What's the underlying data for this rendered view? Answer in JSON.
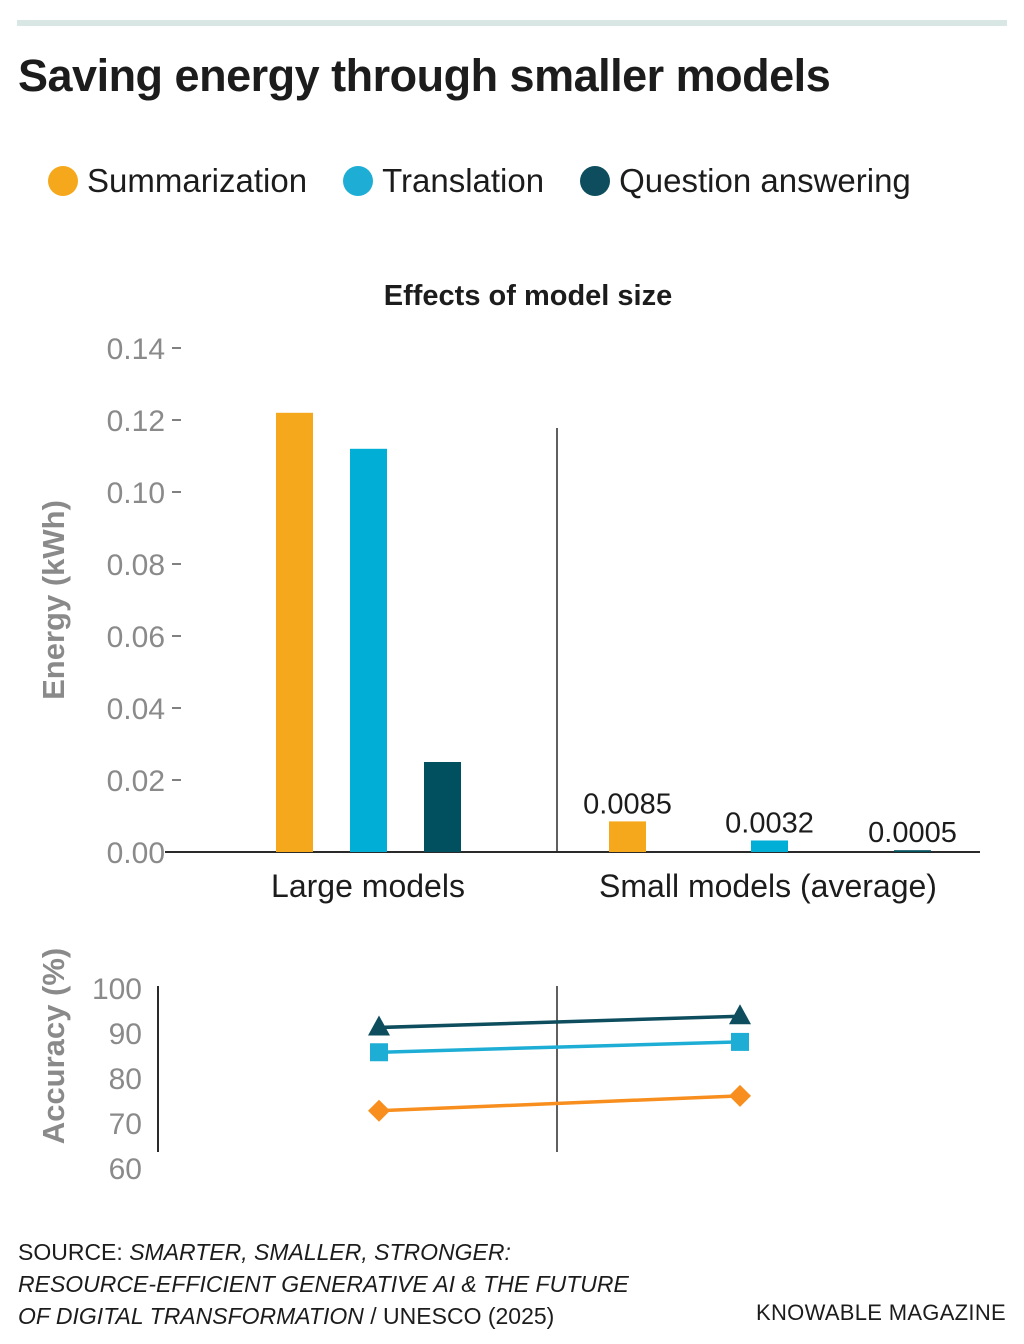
{
  "title": "Saving energy through smaller models",
  "legend": [
    {
      "label": "Summarization",
      "color": "#f6a81c"
    },
    {
      "label": "Translation",
      "color": "#1eaed5"
    },
    {
      "label": "Question answering",
      "color": "#0d4d5e"
    }
  ],
  "chart_data": [
    {
      "type": "bar",
      "title": "Effects of model size",
      "ylabel": "Energy (kWh)",
      "ylim": [
        0,
        0.14
      ],
      "yticks": [
        "0.00",
        "0.02",
        "0.04",
        "0.06",
        "0.08",
        "0.10",
        "0.12",
        "0.14"
      ],
      "categories": [
        "Large models",
        "Small models (average)"
      ],
      "series": [
        {
          "name": "Summarization",
          "color": "#f6a81c",
          "values": [
            0.122,
            0.0085
          ]
        },
        {
          "name": "Translation",
          "color": "#00aed6",
          "values": [
            0.112,
            0.0032
          ]
        },
        {
          "name": "Question answering",
          "color": "#00505f",
          "values": [
            0.025,
            0.0005
          ]
        }
      ],
      "data_labels": [
        "0.0085",
        "0.0032",
        "0.0005"
      ]
    },
    {
      "type": "line",
      "ylabel": "Accuracy (%)",
      "ylim": [
        60,
        100
      ],
      "yticks": [
        "60",
        "70",
        "80",
        "90",
        "100"
      ],
      "categories": [
        "Large models",
        "Small models (average)"
      ],
      "series": [
        {
          "name": "Summarization",
          "color": "#f78e1e",
          "marker": "diamond",
          "values": [
            72.5,
            75.8
          ]
        },
        {
          "name": "Translation",
          "color": "#1eaed5",
          "marker": "square",
          "values": [
            85.5,
            87.8
          ]
        },
        {
          "name": "Question answering",
          "color": "#0d4d5e",
          "marker": "triangle",
          "values": [
            91,
            93.5
          ]
        }
      ]
    }
  ],
  "footer": {
    "prefix": "SOURCE: ",
    "italic_line1": "SMARTER, SMALLER, STRONGER:",
    "italic_line2": "RESOURCE-EFFICIENT GENERATIVE AI & THE FUTURE",
    "italic_line3": "OF DIGITAL TRANSFORMATION",
    "suffix": " / UNESCO (2025)",
    "credit": "KNOWABLE MAGAZINE"
  }
}
